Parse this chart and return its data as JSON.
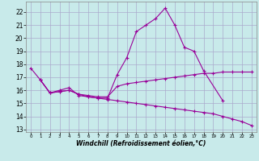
{
  "xlabel": "Windchill (Refroidissement éolien,°C)",
  "background_color": "#c8eaea",
  "grid_color": "#aaaacc",
  "line_color": "#990099",
  "x_ticks": [
    0,
    1,
    2,
    3,
    4,
    5,
    6,
    7,
    8,
    9,
    10,
    11,
    12,
    13,
    14,
    15,
    16,
    17,
    18,
    19,
    20,
    21,
    22,
    23
  ],
  "y_ticks": [
    13,
    14,
    15,
    16,
    17,
    18,
    19,
    20,
    21,
    22
  ],
  "xlim": [
    -0.5,
    23.5
  ],
  "ylim": [
    12.8,
    22.8
  ],
  "line1_x": [
    0,
    1,
    2,
    3,
    4,
    5,
    6,
    7,
    8,
    9,
    10,
    11,
    12,
    13,
    14,
    15,
    16,
    17,
    18,
    20
  ],
  "line1_y": [
    17.7,
    16.8,
    15.8,
    16.0,
    16.2,
    15.6,
    15.5,
    15.4,
    15.4,
    17.2,
    18.5,
    20.5,
    21.0,
    21.5,
    22.3,
    21.0,
    19.3,
    19.0,
    17.5,
    15.2
  ],
  "line2_x": [
    1,
    2,
    3,
    4,
    5,
    6,
    7,
    8,
    9,
    10,
    11,
    12,
    13,
    14,
    15,
    16,
    17,
    18,
    19,
    20,
    21,
    22,
    23
  ],
  "line2_y": [
    16.8,
    15.8,
    15.9,
    16.0,
    15.7,
    15.6,
    15.5,
    15.5,
    16.3,
    16.5,
    16.6,
    16.7,
    16.8,
    16.9,
    17.0,
    17.1,
    17.2,
    17.3,
    17.3,
    17.4,
    17.4,
    17.4,
    17.4
  ],
  "line3_x": [
    1,
    2,
    3,
    4,
    5,
    6,
    7,
    8,
    9,
    10,
    11,
    12,
    13,
    14,
    15,
    16,
    17,
    18,
    19,
    20,
    21,
    22,
    23
  ],
  "line3_y": [
    16.8,
    15.8,
    15.9,
    16.0,
    15.7,
    15.5,
    15.4,
    15.3,
    15.2,
    15.1,
    15.0,
    14.9,
    14.8,
    14.7,
    14.6,
    14.5,
    14.4,
    14.3,
    14.2,
    14.0,
    13.8,
    13.6,
    13.3
  ]
}
